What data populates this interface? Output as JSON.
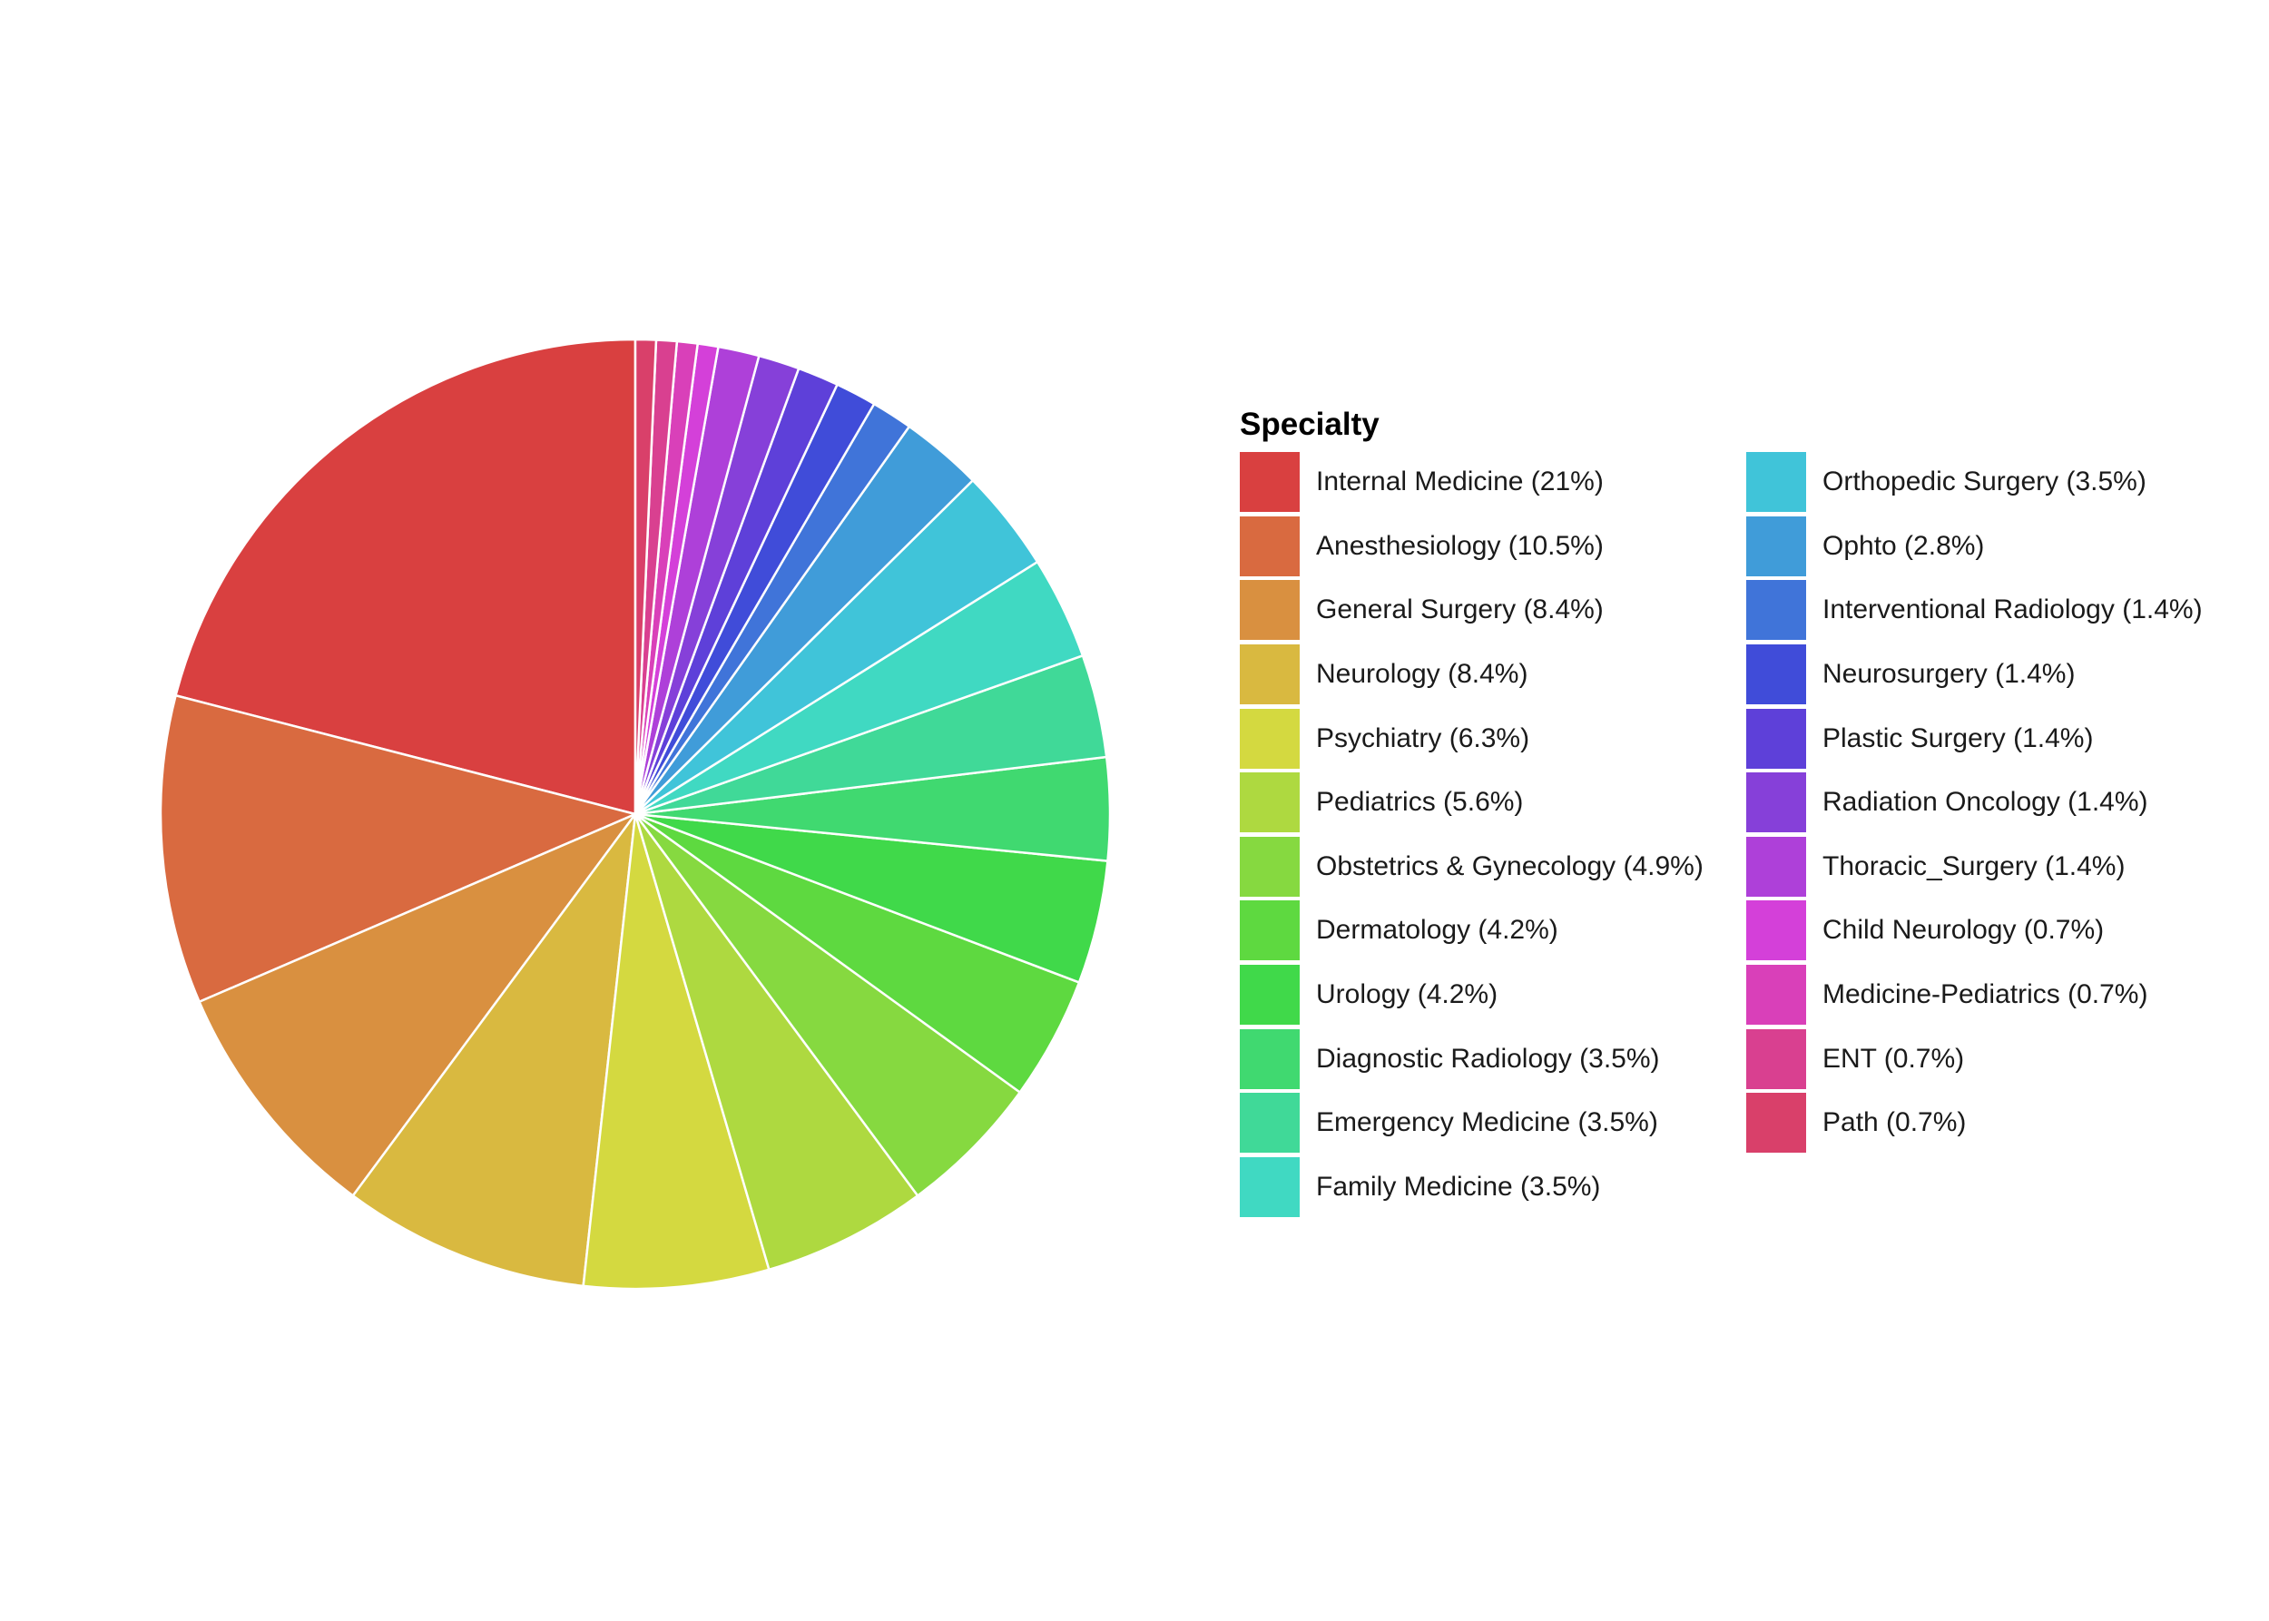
{
  "chart_data": {
    "type": "pie",
    "legend_title": "Specialty",
    "start": "12 o'clock",
    "direction": "counterclockwise",
    "slices": [
      {
        "label": "Internal Medicine (21%)",
        "name": "Internal Medicine",
        "value": 21,
        "color": "#D94040"
      },
      {
        "label": "Anesthesiology (10.5%)",
        "name": "Anesthesiology",
        "value": 10.5,
        "color": "#D96A40"
      },
      {
        "label": "General Surgery (8.4%)",
        "name": "General Surgery",
        "value": 8.4,
        "color": "#D99040"
      },
      {
        "label": "Neurology (8.4%)",
        "name": "Neurology",
        "value": 8.4,
        "color": "#D9B940"
      },
      {
        "label": "Psychiatry (6.3%)",
        "name": "Psychiatry",
        "value": 6.3,
        "color": "#D4D940"
      },
      {
        "label": "Pediatrics (5.6%)",
        "name": "Pediatrics",
        "value": 5.6,
        "color": "#AED940"
      },
      {
        "label": "Obstetrics & Gynecology (4.9%)",
        "name": "Obstetrics & Gynecology",
        "value": 4.9,
        "color": "#86D940"
      },
      {
        "label": "Dermatology (4.2%)",
        "name": "Dermatology",
        "value": 4.2,
        "color": "#5ED940"
      },
      {
        "label": "Urology (4.2%)",
        "name": "Urology",
        "value": 4.2,
        "color": "#40D94A"
      },
      {
        "label": "Diagnostic Radiology (3.5%)",
        "name": "Diagnostic Radiology",
        "value": 3.5,
        "color": "#40D970"
      },
      {
        "label": "Emergency Medicine (3.5%)",
        "name": "Emergency Medicine",
        "value": 3.5,
        "color": "#40D998"
      },
      {
        "label": "Family Medicine (3.5%)",
        "name": "Family Medicine",
        "value": 3.5,
        "color": "#40D9C2"
      },
      {
        "label": "Orthopedic Surgery (3.5%)",
        "name": "Orthopedic Surgery",
        "value": 3.5,
        "color": "#40C4D9"
      },
      {
        "label": "Ophto (2.8%)",
        "name": "Ophto",
        "value": 2.8,
        "color": "#409CD9"
      },
      {
        "label": "Interventional Radiology (1.4%)",
        "name": "Interventional Radiology",
        "value": 1.4,
        "color": "#4074D9"
      },
      {
        "label": "Neurosurgery (1.4%)",
        "name": "Neurosurgery",
        "value": 1.4,
        "color": "#404CD9"
      },
      {
        "label": "Plastic Surgery (1.4%)",
        "name": "Plastic Surgery",
        "value": 1.4,
        "color": "#5E40D9"
      },
      {
        "label": "Radiation Oncology (1.4%)",
        "name": "Radiation Oncology",
        "value": 1.4,
        "color": "#8640D9"
      },
      {
        "label": "Thoracic_Surgery (1.4%)",
        "name": "Thoracic_Surgery",
        "value": 1.4,
        "color": "#AE40D9"
      },
      {
        "label": "Child Neurology (0.7%)",
        "name": "Child Neurology",
        "value": 0.7,
        "color": "#D440D9"
      },
      {
        "label": "Medicine-Pediatrics (0.7%)",
        "name": "Medicine-Pediatrics",
        "value": 0.7,
        "color": "#D940B9"
      },
      {
        "label": "ENT (0.7%)",
        "name": "ENT",
        "value": 0.7,
        "color": "#D94090"
      },
      {
        "label": "Path (0.7%)",
        "name": "Path",
        "value": 0.7,
        "color": "#D9406A"
      }
    ]
  }
}
